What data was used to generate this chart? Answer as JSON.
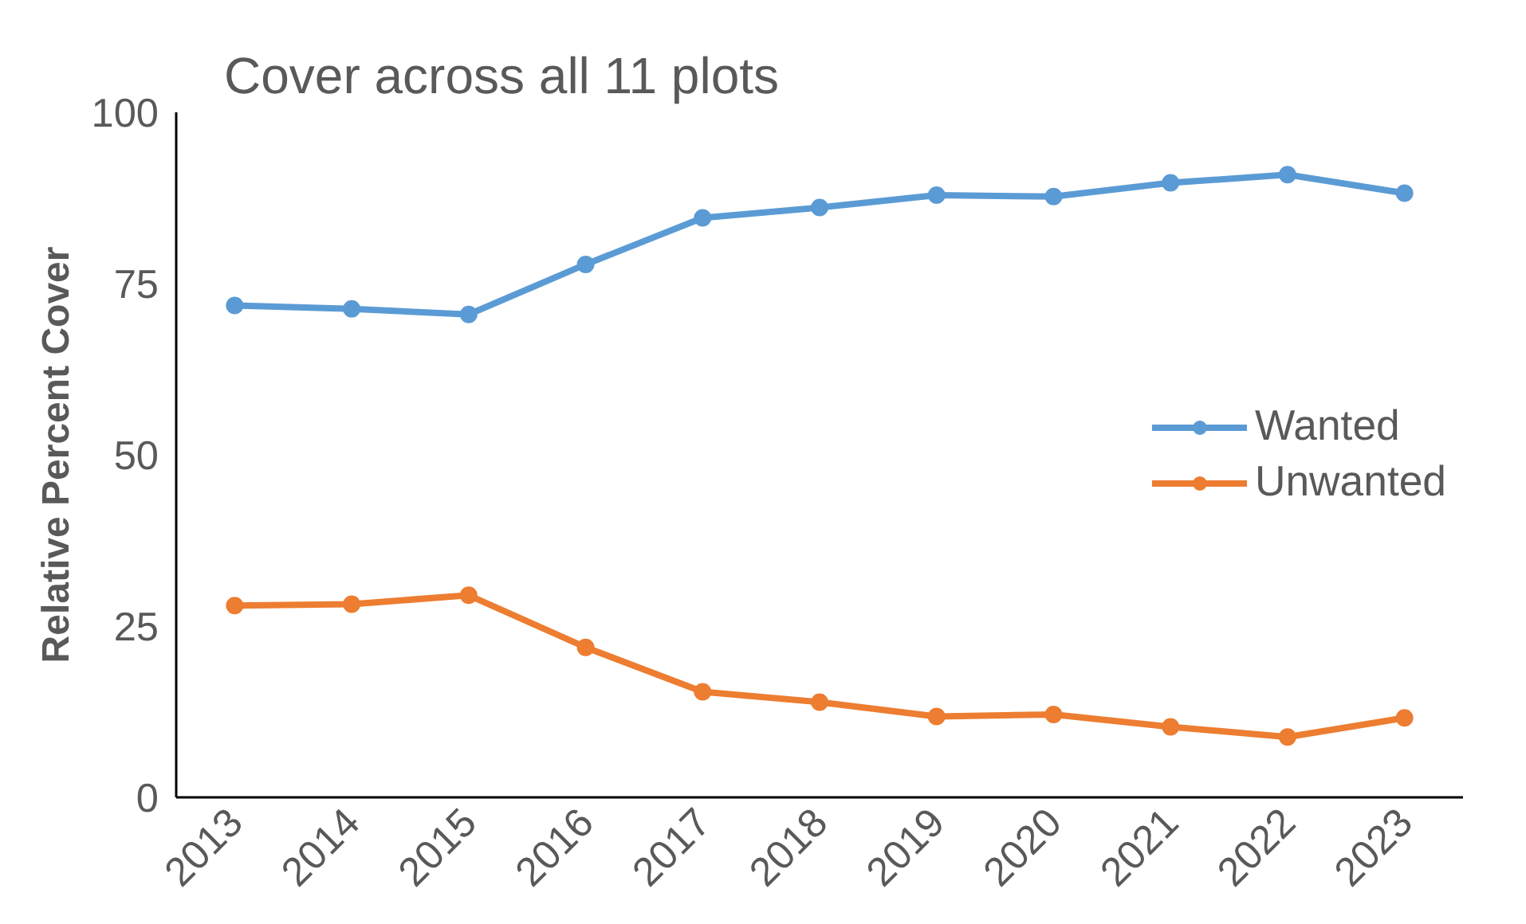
{
  "chart_data": {
    "type": "line",
    "title": "Cover across all 11  plots",
    "ylabel": "Relative Percent Cover",
    "categories": [
      "2013",
      "2014",
      "2015",
      "2016",
      "2017",
      "2018",
      "2019",
      "2020",
      "2021",
      "2022",
      "2023"
    ],
    "series": [
      {
        "name": "Wanted",
        "color": "#5b9bd5",
        "values": [
          71.8,
          71.3,
          70.5,
          77.8,
          84.6,
          86.1,
          87.9,
          87.7,
          89.7,
          90.9,
          88.2
        ]
      },
      {
        "name": "Unwanted",
        "color": "#ed7d31",
        "values": [
          28.0,
          28.2,
          29.5,
          21.9,
          15.4,
          13.9,
          11.8,
          12.1,
          10.3,
          8.8,
          11.6
        ]
      }
    ],
    "ylim": [
      0,
      100
    ],
    "yticks": [
      0,
      25,
      50,
      75,
      100
    ],
    "grid": false,
    "legend": "right",
    "marker": "circle",
    "line_style": "solid"
  }
}
